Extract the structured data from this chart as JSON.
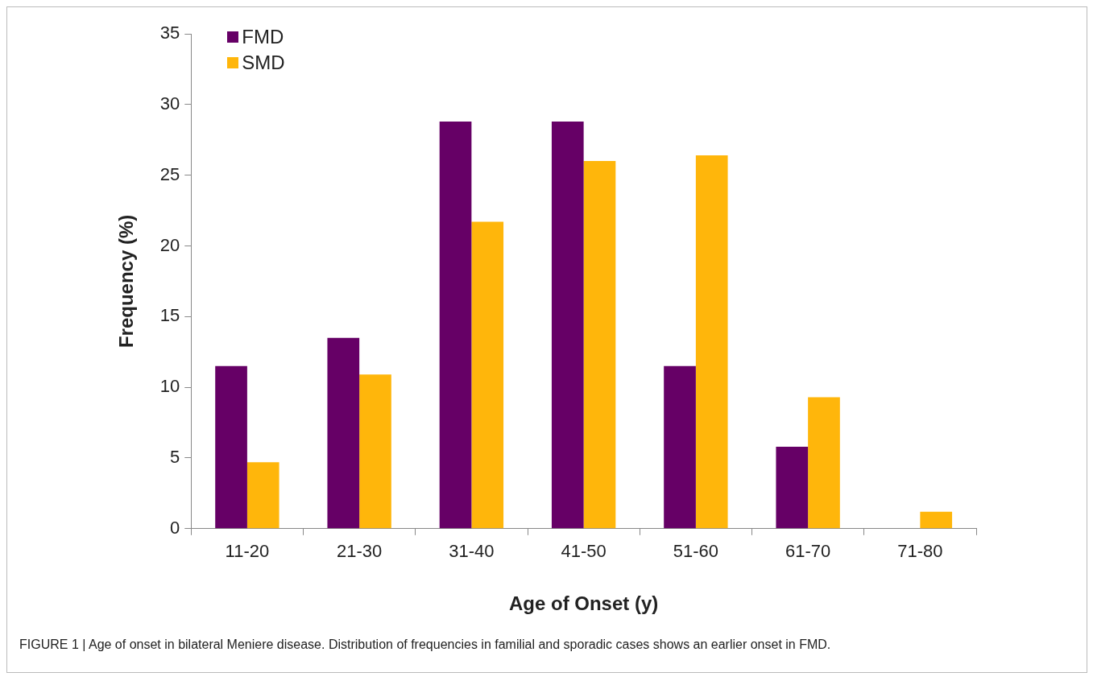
{
  "chart_data": {
    "type": "bar",
    "xlabel": "Age of Onset (y)",
    "ylabel": "Frequency (%)",
    "categories": [
      "11-20",
      "21-30",
      "31-40",
      "41-50",
      "51-60",
      "61-70",
      "71-80"
    ],
    "series": [
      {
        "name": "FMD",
        "color": "#660066",
        "values": [
          11.5,
          13.5,
          28.8,
          28.8,
          11.5,
          5.8,
          0
        ]
      },
      {
        "name": "SMD",
        "color": "#ffb60b",
        "values": [
          4.7,
          10.9,
          21.7,
          26,
          26.4,
          9.3,
          1.2
        ]
      }
    ],
    "ylim": [
      0,
      35
    ],
    "yticks": [
      0,
      5,
      10,
      15,
      20,
      25,
      30,
      35
    ],
    "grid": false,
    "legend": "top left",
    "annotations": [
      "FIGURE 1 | Age of onset in bilateral Meniere disease. Distribution of frequencies in familial and sporadic cases shows an earlier onset in FMD."
    ]
  }
}
